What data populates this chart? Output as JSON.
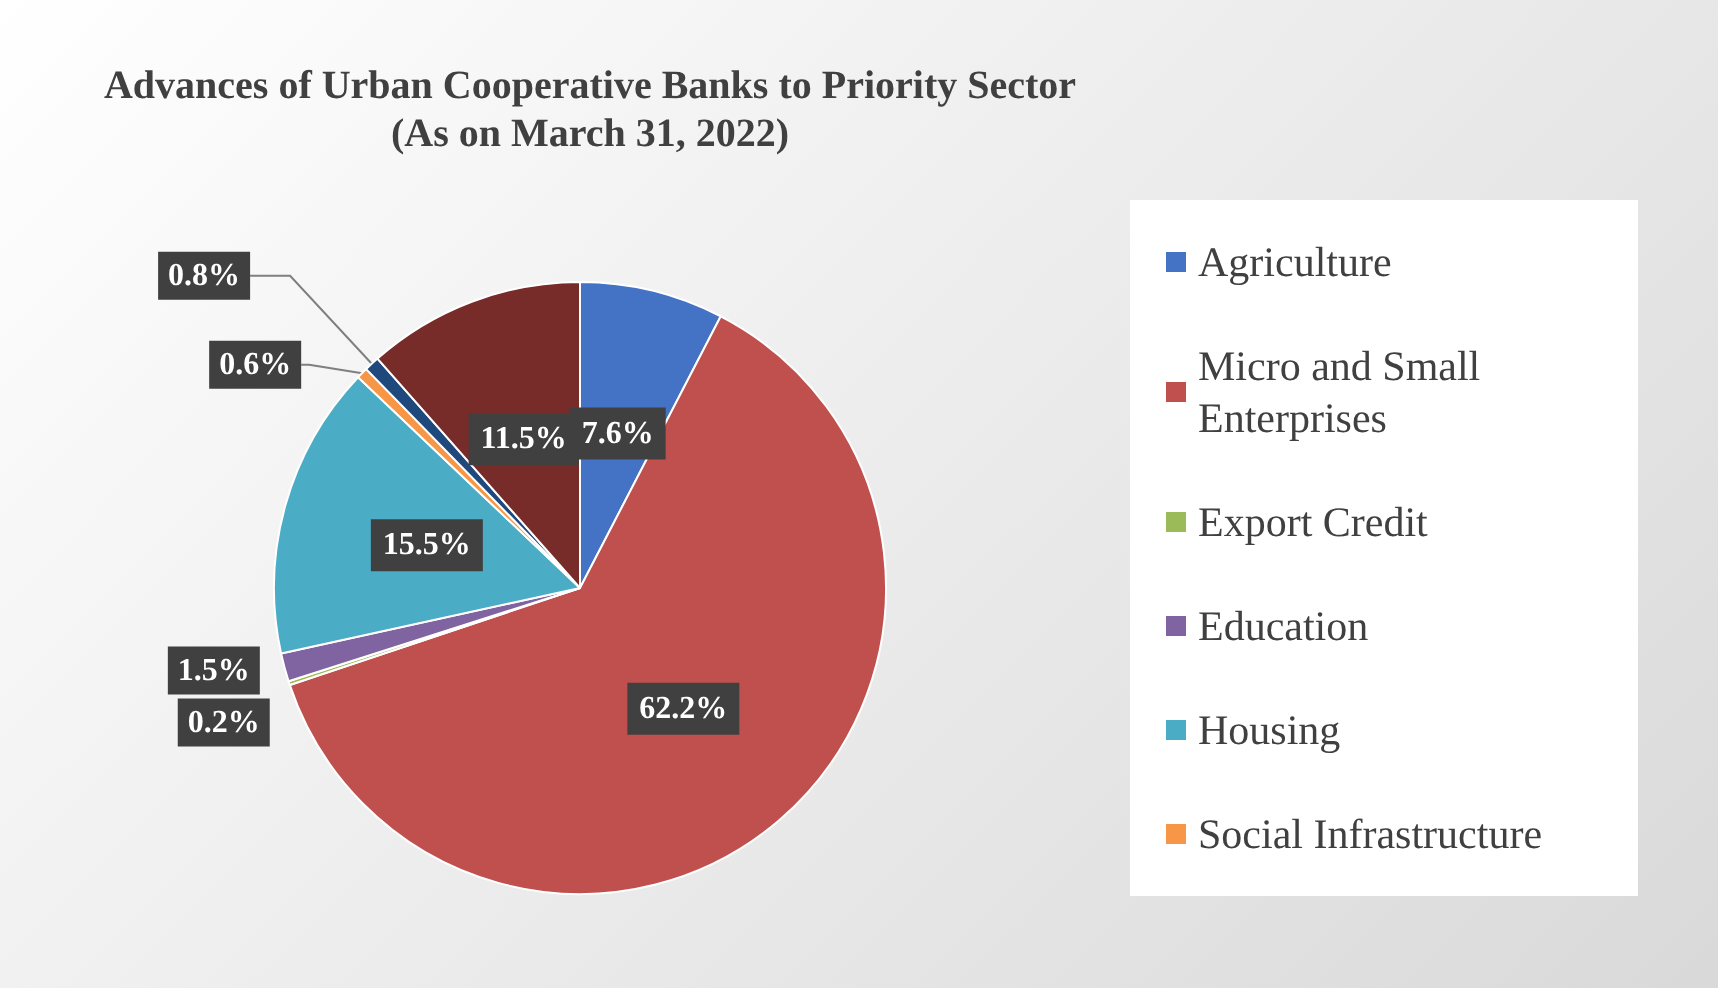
{
  "chart_data": {
    "type": "pie",
    "title": "Advances of Urban Cooperative Banks to Priority Sector",
    "subtitle": "(As on March 31, 2022)",
    "categories": [
      "Agriculture",
      "Micro and Small Enterprises",
      "Export Credit",
      "Education",
      "Housing",
      "Social Infrastructure",
      null,
      null
    ],
    "values": [
      7.6,
      62.2,
      0.2,
      1.5,
      15.5,
      0.6,
      0.8,
      11.5
    ],
    "colors": [
      "#4472c4",
      "#c0504d",
      "#9bbb59",
      "#8064a2",
      "#4bacc6",
      "#f79646",
      "#1f497d",
      "#772c2a"
    ],
    "value_labels": [
      "7.6%",
      "62.2%",
      "0.2%",
      "1.5%",
      "15.5%",
      "0.6%",
      "0.8%",
      "11.5%"
    ],
    "legend": "right"
  }
}
